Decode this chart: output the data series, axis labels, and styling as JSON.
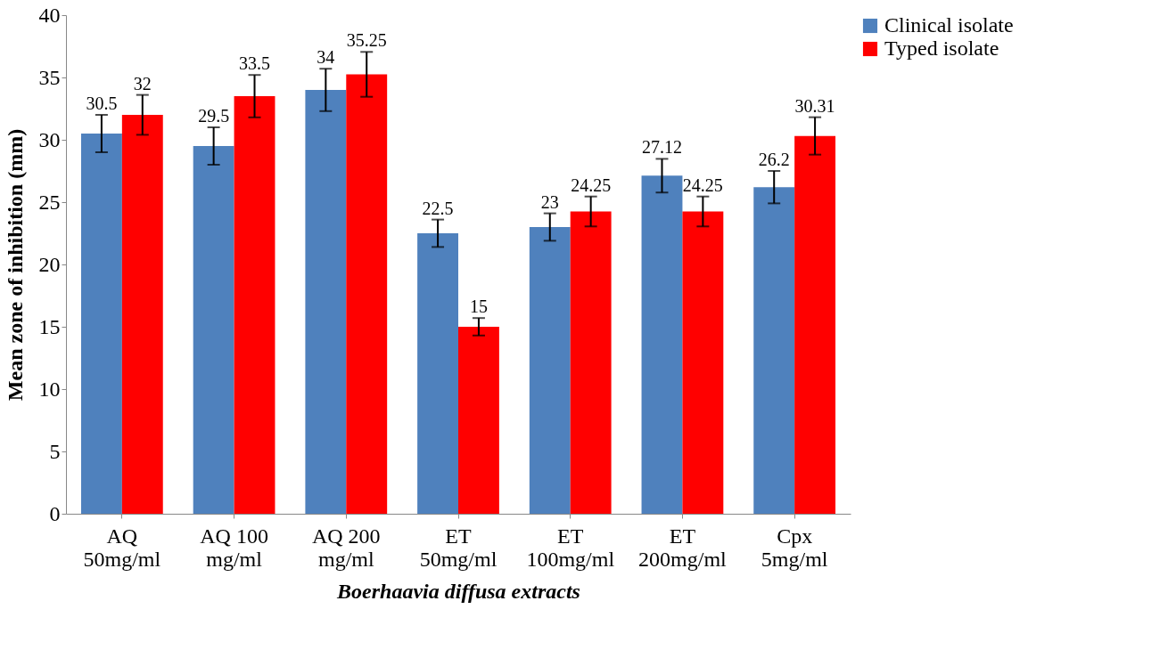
{
  "chart_data": {
    "type": "bar",
    "xlabel": "Boerhaavia diffusa extracts",
    "ylabel": "Mean zone of inhibition (mm)",
    "categories": [
      "AQ\n50mg/ml",
      "AQ 100\nmg/ml",
      "AQ 200\nmg/ml",
      "ET\n50mg/ml",
      "ET\n100mg/ml",
      "ET\n200mg/ml",
      "Cpx\n5mg/ml"
    ],
    "series": [
      {
        "name": "Clinical isolate",
        "color": "#4f81bd",
        "values": [
          30.5,
          29.5,
          34,
          22.5,
          23,
          27.12,
          26.2
        ],
        "errors": [
          1.5,
          1.5,
          1.7,
          1.1,
          1.1,
          1.35,
          1.3
        ]
      },
      {
        "name": "Typed isolate",
        "color": "#ff0000",
        "values": [
          32,
          33.5,
          35.25,
          15,
          24.25,
          24.25,
          30.31
        ],
        "errors": [
          1.6,
          1.7,
          1.8,
          0.7,
          1.2,
          1.2,
          1.5
        ]
      }
    ],
    "ylim": [
      0,
      40
    ],
    "yticks": [
      0,
      5,
      10,
      15,
      20,
      25,
      30,
      35,
      40
    ],
    "grid": false,
    "legend": "right",
    "data_labels": true
  }
}
